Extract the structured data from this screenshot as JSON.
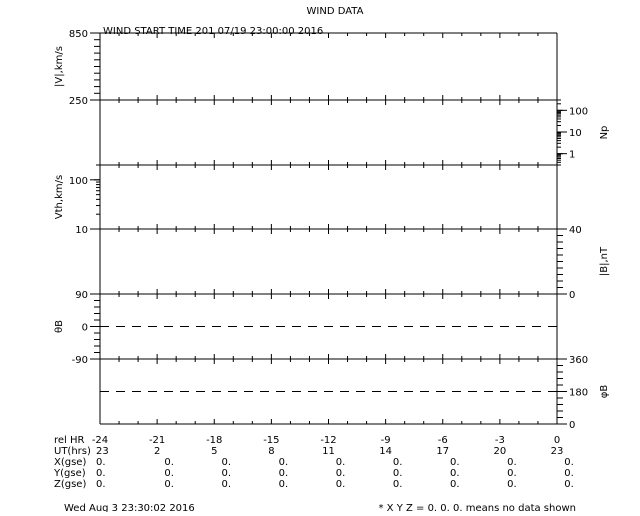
{
  "chart_data": {
    "type": "line",
    "title": "WIND DATA",
    "subtitle": "WIND START TIME 201 07/19 23:00:00 2016",
    "x": {
      "label_rows": [
        {
          "label": "rel HR",
          "values": [
            "-24",
            "-21",
            "-18",
            "-15",
            "-12",
            "-9",
            "-6",
            "-3",
            "0"
          ]
        },
        {
          "label": "UT(hrs)",
          "values": [
            "23",
            "2",
            "5",
            "8",
            "11",
            "14",
            "17",
            "20",
            "23"
          ]
        },
        {
          "label": "X(gse)",
          "values": [
            "0.",
            "0.",
            "0.",
            "0.",
            "0.",
            "0.",
            "0.",
            "0.",
            "0."
          ]
        },
        {
          "label": "Y(gse)",
          "values": [
            "0.",
            "0.",
            "0.",
            "0.",
            "0.",
            "0.",
            "0.",
            "0.",
            "0."
          ]
        },
        {
          "label": "Z(gse)",
          "values": [
            "0.",
            "0.",
            "0.",
            "0.",
            "0.",
            "0.",
            "0.",
            "0.",
            "0."
          ]
        }
      ],
      "range": [
        -24,
        0
      ]
    },
    "panels": [
      {
        "ylabel": "|V|,km/s",
        "side": "left",
        "range": [
          250,
          850
        ],
        "ticks": [
          "850",
          "250"
        ],
        "scale": "linear",
        "series": []
      },
      {
        "ylabel": "Np",
        "side": "right",
        "range": [
          0.3,
          300
        ],
        "ticks": [
          "100",
          "10",
          "1"
        ],
        "scale": "log",
        "series": []
      },
      {
        "ylabel": "Vth,km/s",
        "side": "left",
        "range": [
          10,
          200
        ],
        "ticks": [
          "100",
          "10"
        ],
        "scale": "log",
        "series": []
      },
      {
        "ylabel": "|B|,nT",
        "side": "right",
        "range": [
          0,
          40
        ],
        "ticks": [
          "40",
          "0"
        ],
        "scale": "linear",
        "series": []
      },
      {
        "ylabel": "θB",
        "side": "left",
        "range": [
          -90,
          90
        ],
        "ticks": [
          "90",
          "0",
          "-90"
        ],
        "scale": "linear",
        "reference_line": 0,
        "series": []
      },
      {
        "ylabel": "φB",
        "side": "right",
        "range": [
          0,
          360
        ],
        "ticks": [
          "360",
          "180",
          "0"
        ],
        "scale": "linear",
        "reference_line": 180,
        "series": []
      }
    ],
    "grid": false,
    "legend": "none"
  },
  "footer": {
    "timestamp": "Wed Aug  3 23:30:02 2016",
    "note": "* X Y Z = 0. 0. 0. means no data shown"
  }
}
